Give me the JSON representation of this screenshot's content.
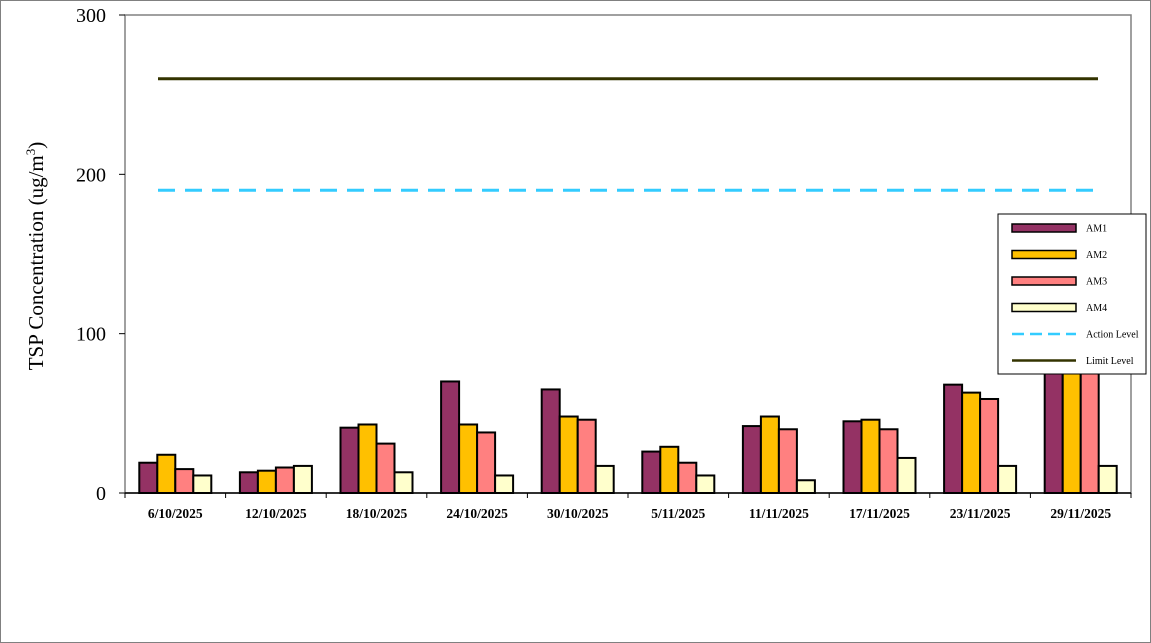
{
  "chart_data": {
    "type": "bar",
    "title": "",
    "xlabel": "",
    "ylabel": "TSP Concentration (ug/m",
    "ylabel_superscript": "3",
    "ylabel_suffix": ")",
    "ylim": [
      0,
      300
    ],
    "yticks": [
      0,
      100,
      200,
      300
    ],
    "grid": false,
    "legend_position": "right",
    "categories": [
      "6/10/2025",
      "12/10/2025",
      "18/10/2025",
      "24/10/2025",
      "30/10/2025",
      "5/11/2025",
      "11/11/2025",
      "17/11/2025",
      "23/11/2025",
      "29/11/2025"
    ],
    "series": [
      {
        "name": "AM1",
        "color": "#943264",
        "values": [
          19,
          13,
          41,
          70,
          65,
          26,
          42,
          45,
          68,
          80
        ]
      },
      {
        "name": "AM2",
        "color": "#FFC000",
        "values": [
          24,
          14,
          43,
          43,
          48,
          29,
          48,
          46,
          63,
          80
        ]
      },
      {
        "name": "AM3",
        "color": "#FF8080",
        "values": [
          15,
          16,
          31,
          38,
          46,
          19,
          40,
          40,
          59,
          80
        ]
      },
      {
        "name": "AM4",
        "color": "#FFFFCC",
        "values": [
          11,
          17,
          13,
          11,
          17,
          11,
          8,
          22,
          17,
          17
        ]
      }
    ],
    "reference_lines": [
      {
        "name": "Action Level",
        "value": 190,
        "color": "#33CCFF",
        "style": "dashed"
      },
      {
        "name": "Limit Level",
        "value": 260,
        "color": "#333300",
        "style": "solid"
      }
    ]
  }
}
